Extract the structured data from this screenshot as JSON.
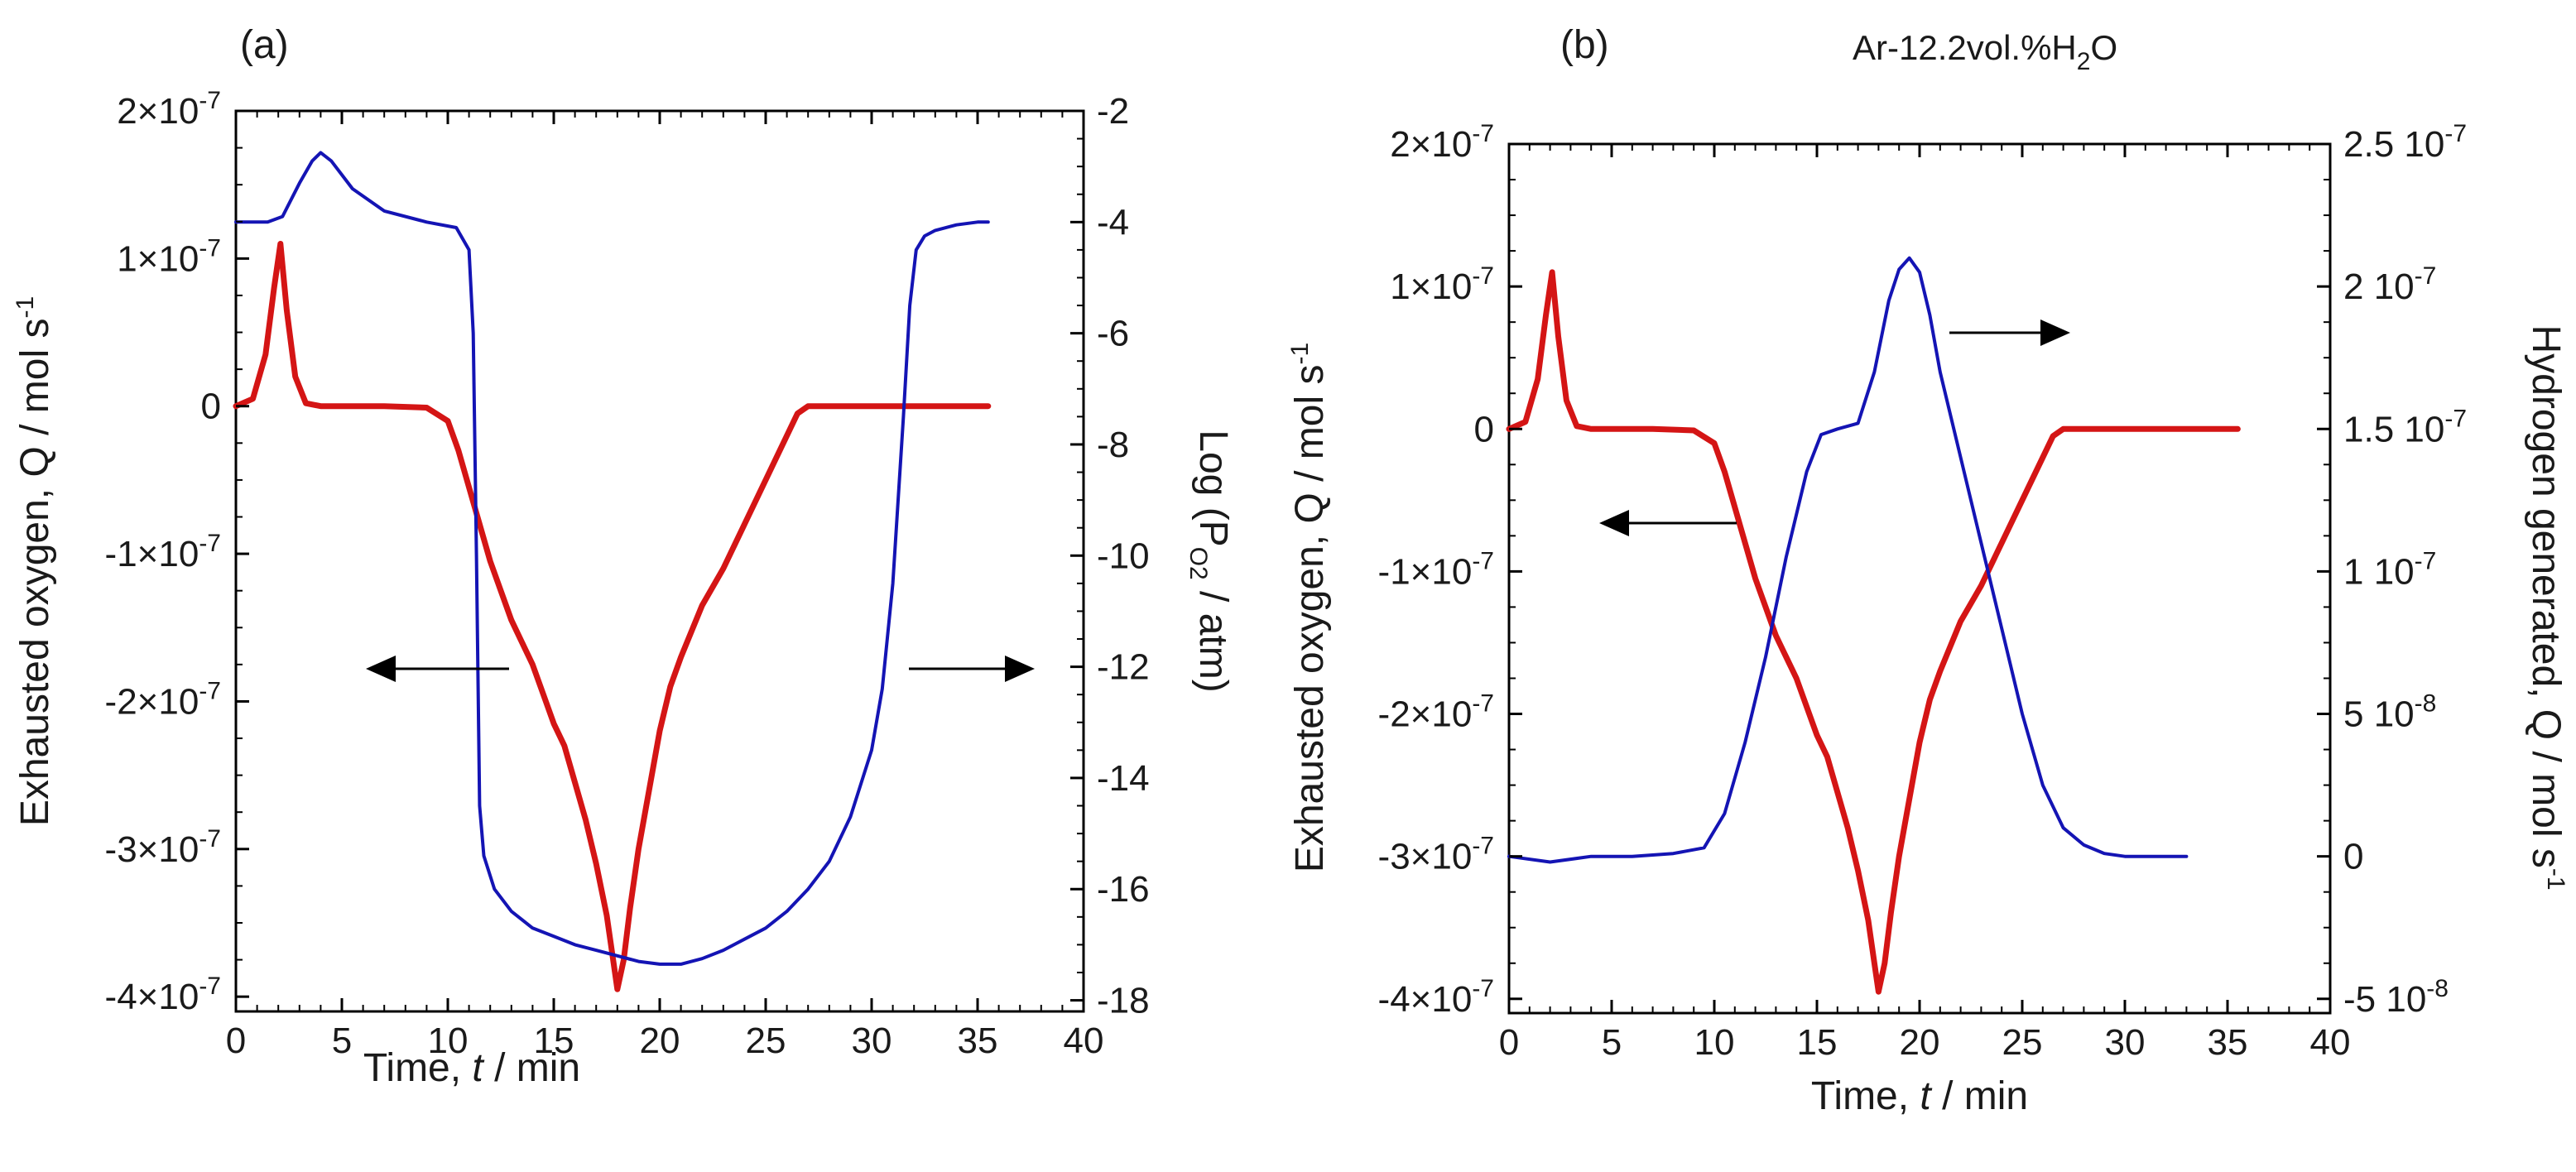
{
  "chart_data": [
    {
      "type": "line",
      "panel_label": "(a)",
      "xlabel_prefix": "Time, ",
      "xlabel_var": "t",
      "xlabel_suffix": " / min",
      "xlim": [
        0,
        40
      ],
      "x_ticks": [
        0,
        5,
        10,
        15,
        20,
        25,
        30,
        35,
        40
      ],
      "y_left": {
        "label_main": "Exhausted oxygen, Q / mol s",
        "label_sup": "-1",
        "ylim": [
          -4.1e-07,
          2e-07
        ],
        "ticks": [
          2e-07,
          1e-07,
          0,
          -1e-07,
          -2e-07,
          -3e-07,
          -4e-07
        ],
        "tick_labels": [
          "2×10",
          "1×10",
          "0",
          "-1×10",
          "-2×10",
          "-3×10",
          "-4×10"
        ],
        "tick_exps": [
          "-7",
          "-7",
          "",
          "-7",
          "-7",
          "-7",
          "-7"
        ]
      },
      "y_right": {
        "label_pre": "Log (P",
        "label_sub": "O2",
        "label_post": " / atm)",
        "ylim": [
          -18.2,
          -2
        ],
        "ticks": [
          -2,
          -4,
          -6,
          -8,
          -10,
          -12,
          -14,
          -16,
          -18
        ],
        "tick_labels": [
          "-2",
          "-4",
          "-6",
          "-8",
          "-10",
          "-12",
          "-14",
          "-16",
          "-18"
        ]
      },
      "series": [
        {
          "name": "Exhausted oxygen",
          "axis": "left",
          "color": "#d41515",
          "x": [
            0,
            0.8,
            1.4,
            1.8,
            2.1,
            2.4,
            2.8,
            3.3,
            4,
            5,
            7,
            9,
            10,
            10.5,
            11,
            11.5,
            12,
            12.5,
            13,
            13.5,
            14,
            14.5,
            15,
            15.5,
            16,
            16.5,
            17,
            17.5,
            17.8,
            18,
            18.3,
            18.6,
            19,
            19.5,
            20,
            20.5,
            21,
            22,
            23,
            24,
            25,
            26,
            26.5,
            27,
            27.5,
            28,
            30,
            32,
            34,
            35.5
          ],
          "values": [
            0,
            5e-09,
            3.5e-08,
            8e-08,
            1.1e-07,
            6.5e-08,
            2e-08,
            2e-09,
            0,
            0,
            0,
            -1e-09,
            -1e-08,
            -3e-08,
            -5.5e-08,
            -8e-08,
            -1.05e-07,
            -1.25e-07,
            -1.45e-07,
            -1.6e-07,
            -1.75e-07,
            -1.95e-07,
            -2.15e-07,
            -2.3e-07,
            -2.55e-07,
            -2.8e-07,
            -3.1e-07,
            -3.45e-07,
            -3.75e-07,
            -3.95e-07,
            -3.75e-07,
            -3.4e-07,
            -3e-07,
            -2.6e-07,
            -2.2e-07,
            -1.9e-07,
            -1.7e-07,
            -1.35e-07,
            -1.1e-07,
            -8e-08,
            -5e-08,
            -2e-08,
            -5e-09,
            0,
            0,
            0,
            0,
            0,
            0,
            0
          ]
        },
        {
          "name": "Log PO2",
          "axis": "right",
          "color": "#1414b4",
          "x": [
            0,
            1.5,
            2.2,
            3,
            3.6,
            4,
            4.5,
            5.5,
            7,
            9,
            10.4,
            11,
            11.2,
            11.35,
            11.5,
            11.7,
            12.2,
            13,
            14,
            15,
            16,
            17,
            18,
            19,
            20,
            21,
            22,
            23,
            24,
            25,
            26,
            27,
            28,
            29,
            30,
            30.5,
            31,
            31.5,
            31.8,
            32.1,
            32.5,
            33,
            34,
            35,
            35.5
          ],
          "values": [
            -4.0,
            -4.0,
            -3.9,
            -3.3,
            -2.9,
            -2.75,
            -2.9,
            -3.4,
            -3.8,
            -4.0,
            -4.1,
            -4.5,
            -6.0,
            -10.0,
            -14.5,
            -15.4,
            -16.0,
            -16.4,
            -16.7,
            -16.85,
            -17.0,
            -17.1,
            -17.2,
            -17.3,
            -17.35,
            -17.35,
            -17.25,
            -17.1,
            -16.9,
            -16.7,
            -16.4,
            -16.0,
            -15.5,
            -14.7,
            -13.5,
            -12.4,
            -10.5,
            -7.5,
            -5.5,
            -4.5,
            -4.25,
            -4.15,
            -4.05,
            -4.0,
            -4.0
          ]
        }
      ],
      "annotations": [
        "arrow-left-pointing-to-left-axis",
        "arrow-right-pointing-to-right-axis"
      ]
    },
    {
      "type": "line",
      "panel_label": "(b)",
      "condition_pre": "Ar-12.2vol.%H",
      "condition_sub": "2",
      "condition_post": "O",
      "xlabel_prefix": "Time, ",
      "xlabel_var": "t",
      "xlabel_suffix": " / min",
      "xlim": [
        0,
        40
      ],
      "x_ticks": [
        0,
        5,
        10,
        15,
        20,
        25,
        30,
        35,
        40
      ],
      "y_left": {
        "label_main": "Exhausted oxygen, Q / mol s",
        "label_sup": "-1",
        "ylim": [
          -4.1e-07,
          2e-07
        ],
        "ticks": [
          2e-07,
          1e-07,
          0,
          -1e-07,
          -2e-07,
          -3e-07,
          -4e-07
        ],
        "tick_labels": [
          "2×10",
          "1×10",
          "0",
          "-1×10",
          "-2×10",
          "-3×10",
          "-4×10"
        ],
        "tick_exps": [
          "-7",
          "-7",
          "",
          "-7",
          "-7",
          "-7",
          "-7"
        ]
      },
      "y_right": {
        "label_main": "Hydrogen generated, Q / mol s",
        "label_sup": "-1",
        "ylim": [
          -5.5e-08,
          2.5e-07
        ],
        "ticks": [
          2.5e-07,
          2e-07,
          1.5e-07,
          1e-07,
          5e-08,
          0,
          -5e-08
        ],
        "tick_labels": [
          "2.5 10",
          "2 10",
          "1.5 10",
          "1 10",
          "5 10",
          "0",
          "-5 10"
        ],
        "tick_exps": [
          "-7",
          "-7",
          "-7",
          "-7",
          "-8",
          "",
          "-8"
        ]
      },
      "series": [
        {
          "name": "Exhausted oxygen",
          "axis": "left",
          "color": "#d41515",
          "x": [
            0,
            0.8,
            1.4,
            1.8,
            2.1,
            2.4,
            2.8,
            3.3,
            4,
            5,
            7,
            9,
            10,
            10.5,
            11,
            11.5,
            12,
            12.5,
            13,
            13.5,
            14,
            14.5,
            15,
            15.5,
            16,
            16.5,
            17,
            17.5,
            17.8,
            18,
            18.3,
            18.6,
            19,
            19.5,
            20,
            20.5,
            21,
            22,
            23,
            24,
            25,
            26,
            26.5,
            27,
            27.5,
            28,
            30,
            32,
            34,
            35.5
          ],
          "values": [
            0,
            5e-09,
            3.5e-08,
            8e-08,
            1.1e-07,
            6.5e-08,
            2e-08,
            2e-09,
            0,
            0,
            0,
            -1e-09,
            -1e-08,
            -3e-08,
            -5.5e-08,
            -8e-08,
            -1.05e-07,
            -1.25e-07,
            -1.45e-07,
            -1.6e-07,
            -1.75e-07,
            -1.95e-07,
            -2.15e-07,
            -2.3e-07,
            -2.55e-07,
            -2.8e-07,
            -3.1e-07,
            -3.45e-07,
            -3.75e-07,
            -3.95e-07,
            -3.75e-07,
            -3.4e-07,
            -3e-07,
            -2.6e-07,
            -2.2e-07,
            -1.9e-07,
            -1.7e-07,
            -1.35e-07,
            -1.1e-07,
            -8e-08,
            -5e-08,
            -2e-08,
            -5e-09,
            0,
            0,
            0,
            0,
            0,
            0,
            0
          ]
        },
        {
          "name": "Hydrogen generated",
          "axis": "right",
          "color": "#1414b4",
          "x": [
            0,
            2,
            4,
            6,
            8,
            9.5,
            10.5,
            11.5,
            12.5,
            13.5,
            14.5,
            15.2,
            16,
            17,
            17.8,
            18.5,
            19,
            19.5,
            20,
            20.5,
            21,
            22,
            23,
            24,
            25,
            26,
            27,
            28,
            29,
            30,
            31,
            32,
            33
          ],
          "values": [
            0,
            -2e-09,
            0,
            0,
            1e-09,
            3e-09,
            1.5e-08,
            4e-08,
            7e-08,
            1.05e-07,
            1.35e-07,
            1.48e-07,
            1.5e-07,
            1.52e-07,
            1.7e-07,
            1.95e-07,
            2.06e-07,
            2.1e-07,
            2.05e-07,
            1.9e-07,
            1.7e-07,
            1.4e-07,
            1.1e-07,
            8e-08,
            5e-08,
            2.5e-08,
            1e-08,
            4e-09,
            1e-09,
            0,
            0,
            0,
            0
          ]
        }
      ],
      "annotations": [
        "arrow-left-pointing-to-left-axis",
        "arrow-right-pointing-to-right-axis"
      ]
    }
  ]
}
